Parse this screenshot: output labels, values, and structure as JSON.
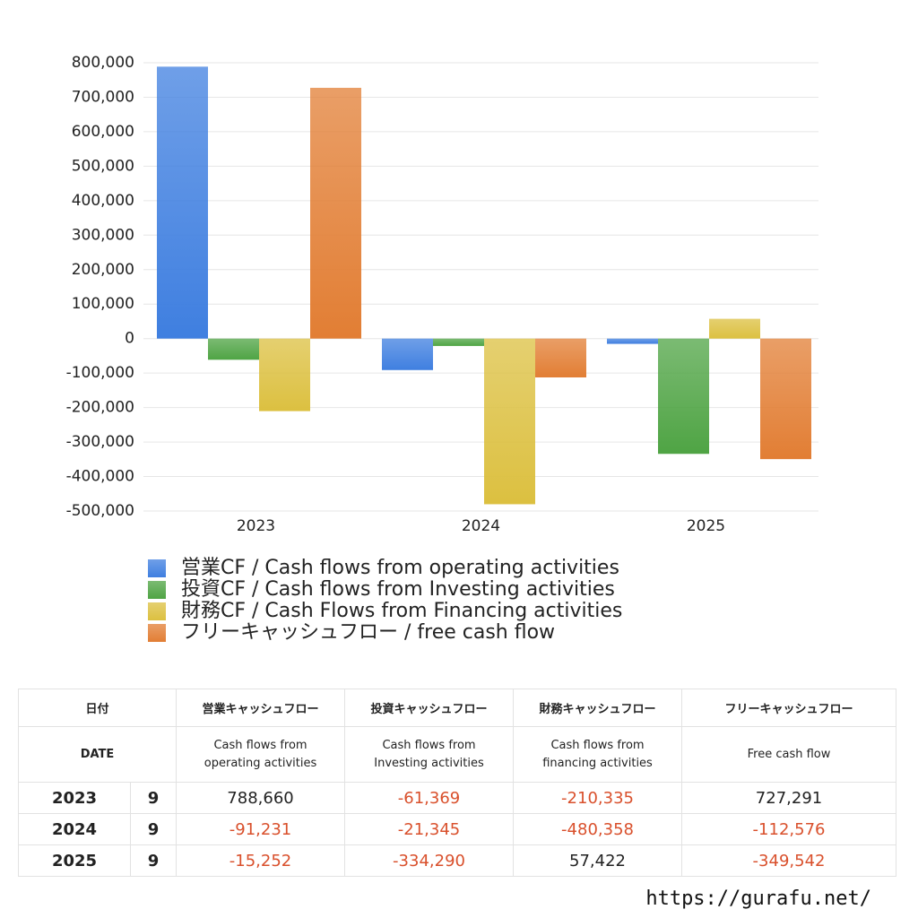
{
  "chart_data": {
    "type": "bar",
    "categories": [
      "2023",
      "2024",
      "2025"
    ],
    "series": [
      {
        "name": "営業CF / Cash flows from operating activities",
        "color": "#3f7fe0",
        "values": [
          788660,
          -91231,
          -15252
        ]
      },
      {
        "name": "投資CF / Cash flows from Investing activities",
        "color": "#4fa444",
        "values": [
          -61369,
          -21345,
          -334290
        ]
      },
      {
        "name": "財務CF / Cash Flows from Financing activities",
        "color": "#dcc040",
        "values": [
          -210335,
          -480358,
          57422
        ]
      },
      {
        "name": "フリーキャッシュフロー / free cash flow",
        "color": "#e27e34",
        "values": [
          727291,
          -112576,
          -349542
        ]
      }
    ],
    "ylim": [
      -500000,
      800000
    ],
    "yticks": [
      {
        "value": -500000,
        "label": "-500,000"
      },
      {
        "value": -400000,
        "label": "-400,000"
      },
      {
        "value": -300000,
        "label": "-300,000"
      },
      {
        "value": -200000,
        "label": "-200,000"
      },
      {
        "value": -100000,
        "label": "-100,000"
      },
      0,
      {
        "value": 100000,
        "label": "100,000"
      },
      {
        "value": 200000,
        "label": "200,000"
      },
      {
        "value": 300000,
        "label": "300,000"
      },
      {
        "value": 400000,
        "label": "400,000"
      },
      {
        "value": 500000,
        "label": "500,000"
      },
      {
        "value": 600000,
        "label": "600,000"
      },
      {
        "value": 700000,
        "label": "700,000"
      },
      {
        "value": 800000,
        "label": "800,000"
      }
    ],
    "grid": true
  },
  "table": {
    "header_top": [
      "日付",
      "営業キャッシュフロー",
      "投資キャッシュフロー",
      "財務キャッシュフロー",
      "フリーキャッシュフロー"
    ],
    "header_sub": [
      "DATE",
      "Cash flows from operating activities",
      "Cash flows from Investing activities",
      "Cash flows from financing activities",
      "Free cash flow"
    ],
    "rows": [
      {
        "year": "2023",
        "month": "9",
        "cells": [
          "788,660",
          "-61,369",
          "-210,335",
          "727,291"
        ]
      },
      {
        "year": "2024",
        "month": "9",
        "cells": [
          "-91,231",
          "-21,345",
          "-480,358",
          "-112,576"
        ]
      },
      {
        "year": "2025",
        "month": "9",
        "cells": [
          "-15,252",
          "-334,290",
          "57,422",
          "-349,542"
        ]
      }
    ]
  },
  "footer": "https://gurafu.net/"
}
